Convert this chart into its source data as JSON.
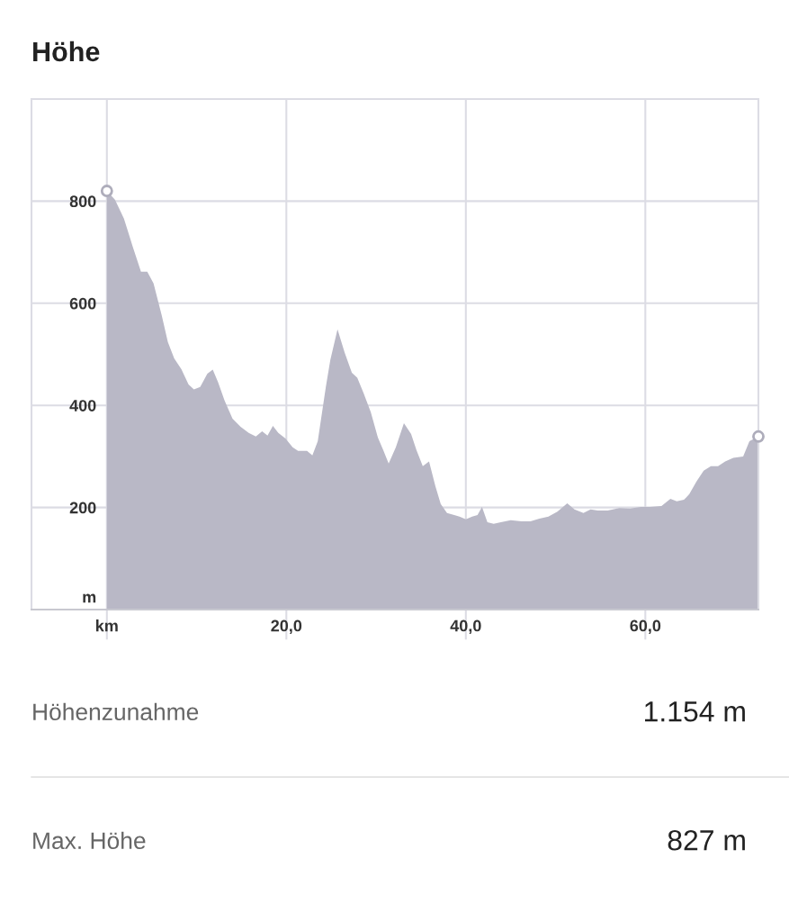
{
  "chart_data": {
    "type": "area",
    "title": "Höhe",
    "x": [
      0,
      0.9,
      1.9,
      2.9,
      3.8,
      4.5,
      5.2,
      6.1,
      6.8,
      7.5,
      8.3,
      9.1,
      9.7,
      10.4,
      11.2,
      11.8,
      12.4,
      13.1,
      14.0,
      14.9,
      15.8,
      16.6,
      17.3,
      17.9,
      18.5,
      19.1,
      19.9,
      20.7,
      21.3,
      22.3,
      22.9,
      23.5,
      24.4,
      24.9,
      25.7,
      26.5,
      27.3,
      27.9,
      28.6,
      29.4,
      30.2,
      30.8,
      31.4,
      32.2,
      33.1,
      33.9,
      34.5,
      35.2,
      35.9,
      36.6,
      37.2,
      37.9,
      38.7,
      39.3,
      40.0,
      40.7,
      41.3,
      41.8,
      42.4,
      43.1,
      43.9,
      45.0,
      46.2,
      47.2,
      48.2,
      49.2,
      50.2,
      51.3,
      52.1,
      53.1,
      53.9,
      54.7,
      55.8,
      57.1,
      58.3,
      59.5,
      60.5,
      61.8,
      62.8,
      63.5,
      64.3,
      64.9,
      65.7,
      66.5,
      67.3,
      68.1,
      68.9,
      69.8,
      70.9,
      71.6,
      72.6
    ],
    "series": [
      {
        "color": "#b9b8c6",
        "values": [
          820,
          803,
          766,
          710,
          662,
          662,
          639,
          577,
          524,
          492,
          471,
          441,
          431,
          436,
          462,
          470,
          445,
          410,
          374,
          358,
          346,
          339,
          349,
          341,
          360,
          346,
          335,
          318,
          311,
          311,
          302,
          330,
          436,
          489,
          549,
          503,
          464,
          454,
          424,
          387,
          337,
          312,
          286,
          318,
          365,
          344,
          312,
          281,
          290,
          242,
          207,
          189,
          185,
          182,
          177,
          182,
          185,
          201,
          171,
          168,
          171,
          175,
          173,
          173,
          178,
          182,
          192,
          208,
          196,
          189,
          196,
          194,
          194,
          199,
          198,
          201,
          201,
          203,
          217,
          212,
          215,
          226,
          251,
          272,
          281,
          281,
          290,
          297,
          300,
          330,
          339
        ]
      },
      {
        "type": "scatter",
        "color": "#ffffff",
        "marker": "circle",
        "x": [
          0,
          72.6
        ],
        "values": [
          820,
          339
        ]
      }
    ],
    "xlim": [
      -8.4,
      72.6
    ],
    "ylim": [
      0,
      1000
    ],
    "xticks": [
      {
        "value": 0,
        "label": "km"
      },
      {
        "value": 20,
        "label": "20,0"
      },
      {
        "value": 40,
        "label": "40,0"
      },
      {
        "value": 60,
        "label": "60,0"
      }
    ],
    "yticks": [
      {
        "value": 0,
        "label": "m"
      },
      200,
      400,
      600,
      800
    ],
    "grid": true,
    "annotations": [
      "Höhenzunahme",
      "1.154 m",
      "Max. Höhe",
      "827 m"
    ]
  }
}
